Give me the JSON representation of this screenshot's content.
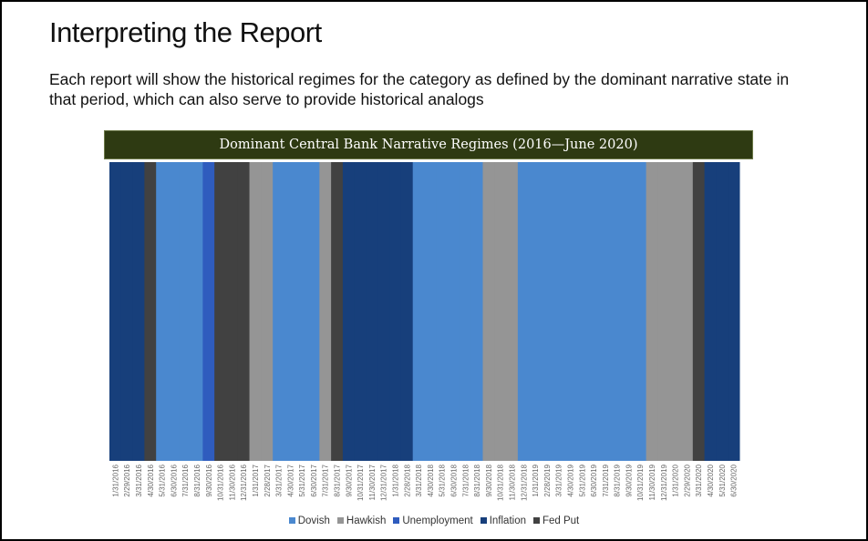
{
  "slide": {
    "title": "Interpreting the Report",
    "body": "Each report will show the historical regimes for the category as defined by the dominant narrative state in that period, which can also serve to provide historical analogs"
  },
  "chart_data": {
    "type": "bar",
    "title": "Dominant Central Bank Narrative Regimes (2016—June 2020)",
    "xlabel": "",
    "ylabel": "",
    "legend_position": "bottom",
    "grid": false,
    "colors": {
      "Dovish": "#4a88cf",
      "Hawkish": "#959595",
      "Unemployment": "#2f5cbe",
      "Inflation": "#173f7b",
      "Fed Put": "#414141"
    },
    "legend": [
      "Dovish",
      "Hawkish",
      "Unemployment",
      "Inflation",
      "Fed Put"
    ],
    "categories": [
      "1/31/2016",
      "2/29/2016",
      "3/31/2016",
      "4/30/2016",
      "5/31/2016",
      "6/30/2016",
      "7/31/2016",
      "8/31/2016",
      "9/30/2016",
      "10/31/2016",
      "11/30/2016",
      "12/31/2016",
      "1/31/2017",
      "2/28/2017",
      "3/31/2017",
      "4/30/2017",
      "5/31/2017",
      "6/30/2017",
      "7/31/2017",
      "8/31/2017",
      "9/30/2017",
      "10/31/2017",
      "11/30/2017",
      "12/31/2017",
      "1/31/2018",
      "2/28/2018",
      "3/31/2018",
      "4/30/2018",
      "5/31/2018",
      "6/30/2018",
      "7/31/2018",
      "8/31/2018",
      "9/30/2018",
      "10/31/2018",
      "11/30/2018",
      "12/31/2018",
      "1/31/2019",
      "2/28/2019",
      "3/31/2019",
      "4/30/2019",
      "5/31/2019",
      "6/30/2019",
      "7/31/2019",
      "8/31/2019",
      "9/30/2019",
      "10/31/2019",
      "11/30/2019",
      "12/31/2019",
      "1/31/2020",
      "2/29/2020",
      "3/31/2020",
      "4/30/2020",
      "5/31/2020",
      "6/30/2020"
    ],
    "regimes": [
      "Inflation",
      "Inflation",
      "Inflation",
      "Fed Put",
      "Dovish",
      "Dovish",
      "Dovish",
      "Dovish",
      "Unemployment",
      "Fed Put",
      "Fed Put",
      "Fed Put",
      "Hawkish",
      "Hawkish",
      "Dovish",
      "Dovish",
      "Dovish",
      "Dovish",
      "Hawkish",
      "Fed Put",
      "Inflation",
      "Inflation",
      "Inflation",
      "Inflation",
      "Inflation",
      "Inflation",
      "Dovish",
      "Dovish",
      "Dovish",
      "Dovish",
      "Dovish",
      "Dovish",
      "Hawkish",
      "Hawkish",
      "Hawkish",
      "Dovish",
      "Dovish",
      "Dovish",
      "Dovish",
      "Dovish",
      "Dovish",
      "Dovish",
      "Dovish",
      "Dovish",
      "Dovish",
      "Dovish",
      "Hawkish",
      "Hawkish",
      "Hawkish",
      "Hawkish",
      "Fed Put",
      "Inflation",
      "Inflation",
      "Inflation"
    ]
  }
}
